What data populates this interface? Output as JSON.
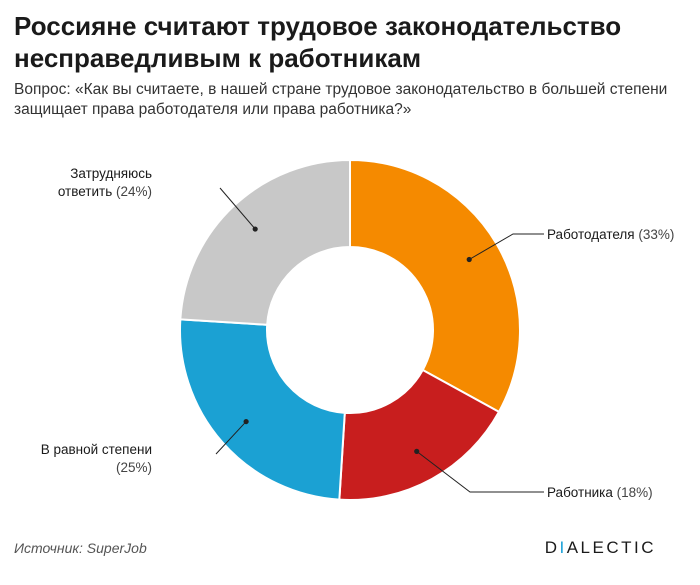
{
  "header": {
    "title": "Россияне считают трудовое законодательство несправедливым к работникам",
    "question": "Вопрос: «Как вы считаете, в нашей стране трудовое законодательство в большей степени защищает права работодателя или права работника?»"
  },
  "chart_data": {
    "type": "pie",
    "donut": true,
    "title": "",
    "slices": [
      {
        "label": "Работодателя",
        "value": 33,
        "pct_text": "(33%)",
        "color": "#f58a00"
      },
      {
        "label": "Работника",
        "value": 18,
        "pct_text": "(18%)",
        "color": "#c81e1e"
      },
      {
        "label": "В равной степени",
        "value": 25,
        "pct_text": "(25%)",
        "color": "#1ba1d3"
      },
      {
        "label": "Затрудняюсь ответить",
        "value": 24,
        "pct_text": "(24%)",
        "color": "#c8c8c8"
      }
    ],
    "label_lines": {
      "s0": [
        "Работодателя"
      ],
      "s1": [
        "Работника"
      ],
      "s2": [
        "В равной степени"
      ],
      "s3": [
        "Затрудняюсь",
        "ответить"
      ]
    }
  },
  "footer": {
    "source": "Источник: SuperJob",
    "logo_pre": "D",
    "logo_accent": "I",
    "logo_post": "ALECTIC"
  }
}
